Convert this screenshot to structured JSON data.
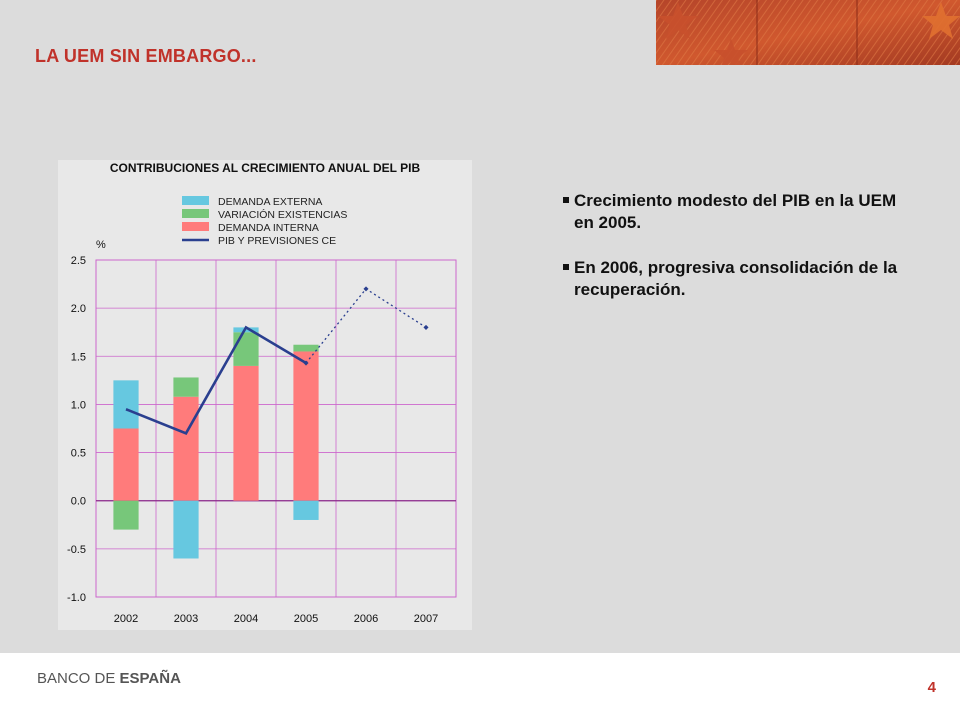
{
  "slide": {
    "title": "LA UEM SIN EMBARGO...",
    "page_number": "4",
    "logo_part1": "BANCO DE ",
    "logo_part2": "ESPAÑA"
  },
  "bullets": [
    "Crecimiento modesto del PIB en la UEM en 2005.",
    "En 2006, progresiva consolidación de la recuperación."
  ],
  "colors": {
    "title": "#c0322a",
    "demanda_externa": "#66c8e0",
    "variacion_existencias": "#77c77a",
    "demanda_interna": "#ff7b7b",
    "pib_line": "#2a3f8f",
    "grid": "#cc66cc"
  },
  "chart_data": {
    "type": "bar",
    "title": "CONTRIBUCIONES AL CRECIMIENTO ANUAL DEL PIB",
    "ylabel": "%",
    "categories": [
      "2002",
      "2003",
      "2004",
      "2005",
      "2006",
      "2007"
    ],
    "ylim": [
      -1.0,
      2.5
    ],
    "yticks": [
      "2.5",
      "2.0",
      "1.5",
      "1.0",
      "0.5",
      "0.0",
      "-0.5",
      "-1.0"
    ],
    "grid": true,
    "legend_position": "top",
    "series": [
      {
        "name": "DEMANDA EXTERNA",
        "kind": "stacked-bar",
        "values": [
          0.5,
          -0.6,
          0.05,
          -0.2,
          null,
          null
        ]
      },
      {
        "name": "VARIACIÓN EXISTENCIAS",
        "kind": "stacked-bar",
        "values": [
          -0.3,
          0.2,
          0.35,
          0.07,
          null,
          null
        ]
      },
      {
        "name": "DEMANDA INTERNA",
        "kind": "stacked-bar",
        "values": [
          0.75,
          1.08,
          1.4,
          1.55,
          null,
          null
        ]
      },
      {
        "name": "PIB Y PREVISIONES CE",
        "kind": "line",
        "values": [
          0.95,
          0.7,
          1.8,
          1.43,
          2.2,
          1.8
        ],
        "forecast_from_index": 3
      }
    ]
  }
}
